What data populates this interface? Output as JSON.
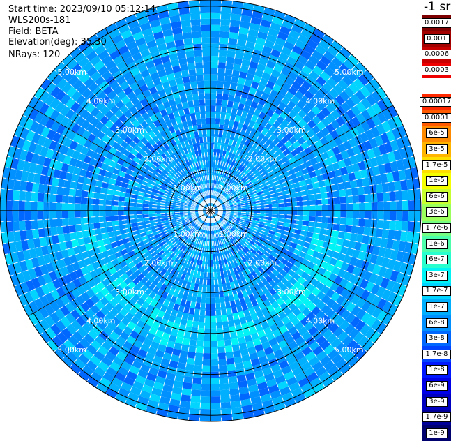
{
  "header": {
    "start_time": "Start time: 2023/09/10 05:12:14",
    "instrument": "WLS200s-181",
    "field": "Field: BETA",
    "elevation": "Elevation(deg): 35.30",
    "nrays": "NRays: 120"
  },
  "colorbar": {
    "unit": "-1 sr",
    "levels": [
      {
        "label": "0.0017",
        "color": "#7f0000"
      },
      {
        "label": "0.001",
        "color": "#a30000"
      },
      {
        "label": "0.0006",
        "color": "#c80000"
      },
      {
        "label": "0.0003",
        "color": "#ee0000"
      },
      {
        "label": "",
        "color": "#ffffff"
      },
      {
        "label": "0.00017",
        "color": "#ff2a00"
      },
      {
        "label": "0.0001",
        "color": "#ff5a00"
      },
      {
        "label": "6e-5",
        "color": "#ff8a00"
      },
      {
        "label": "3e-5",
        "color": "#ffb400"
      },
      {
        "label": "1.7e-5",
        "color": "#ffdf00"
      },
      {
        "label": "1e-5",
        "color": "#f6ff00"
      },
      {
        "label": "6e-6",
        "color": "#c8ff2e"
      },
      {
        "label": "3e-6",
        "color": "#9bff5c"
      },
      {
        "label": "1.7e-6",
        "color": "#74ff83"
      },
      {
        "label": "1e-6",
        "color": "#4dffaa"
      },
      {
        "label": "6e-7",
        "color": "#29ffce"
      },
      {
        "label": "3e-7",
        "color": "#00f4f6"
      },
      {
        "label": "1.7e-7",
        "color": "#00d4ff"
      },
      {
        "label": "1e-7",
        "color": "#00b0ff"
      },
      {
        "label": "6e-8",
        "color": "#0090ff"
      },
      {
        "label": "3e-8",
        "color": "#0068ff"
      },
      {
        "label": "1.7e-8",
        "color": "#0044ff"
      },
      {
        "label": "1e-8",
        "color": "#0018ff"
      },
      {
        "label": "6e-9",
        "color": "#0000e8"
      },
      {
        "label": "3e-9",
        "color": "#0000c0"
      },
      {
        "label": "1.7e-9",
        "color": "#000098"
      },
      {
        "label": "1e-9",
        "color": "#00006e"
      }
    ]
  },
  "chart_data": {
    "type": "heatmap",
    "projection": "polar (PPI scan)",
    "rings": [
      {
        "range_km": 1,
        "label": "1.00km"
      },
      {
        "range_km": 2,
        "label": "2.00km"
      },
      {
        "range_km": 3,
        "label": "3.00km"
      },
      {
        "range_km": 4,
        "label": "4.00km"
      },
      {
        "range_km": 5,
        "label": "5.00km"
      }
    ],
    "max_range_km": 5.15,
    "nrays": 120,
    "spokes_deg": [
      0,
      30,
      60,
      90,
      120,
      150,
      180,
      210,
      240,
      270,
      300,
      330
    ],
    "dominant_value_range": [
      "1e-8",
      "1.7e-7"
    ],
    "enhanced_arc": {
      "range_km": [
        2.5,
        3.5
      ],
      "value": "1.7e-7",
      "sector_deg": [
        100,
        260
      ]
    }
  }
}
